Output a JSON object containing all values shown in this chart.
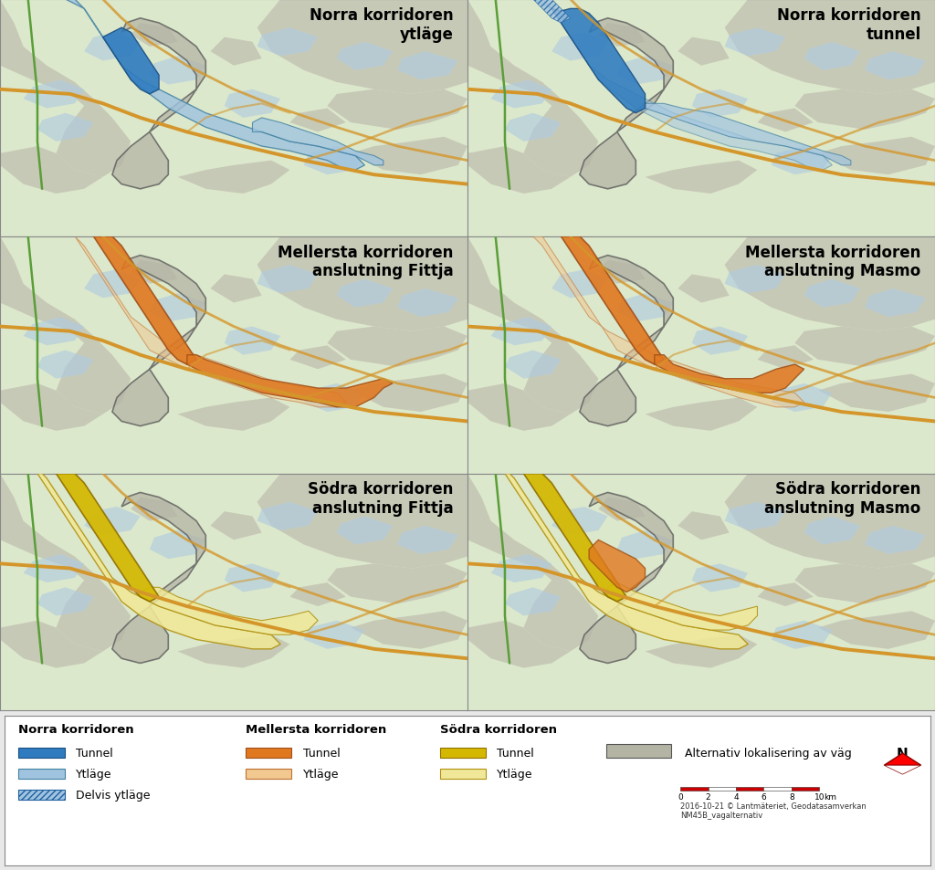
{
  "panel_titles": [
    "Norra korridoren\nytläge",
    "Norra korridoren\ntunnel",
    "Mellersta korridoren\nanslutning Fittja",
    "Mellersta korridoren\nanslutning Masmo",
    "Södra korridoren\nanslutning Fittja",
    "Södra korridoren\nanslutning Masmo"
  ],
  "background_color": "#e8e8e8",
  "title_fontsize": 12,
  "norra_tunnel_color": "#2e7bbf",
  "norra_ytlage_color": "#a0c4e0",
  "mellersta_tunnel_color": "#e07820",
  "mellersta_ytlage_color": "#f0c890",
  "sodra_tunnel_color": "#d4b800",
  "sodra_ytlage_color": "#f0e898",
  "alternativ_color": "#b4b4a4",
  "alternativ_edge": "#555555",
  "road_orange": "#d4962a",
  "road_green": "#5a9e38",
  "water_color": "#b0cce0",
  "terrain_gray": "#c0bfb0",
  "terrain_green": "#d4e0c0",
  "map_bg": "#dce8cc",
  "copyright_text": "2016-10-21 © Lantmäteriet, Geodatasamverkan\nNM45B_vagalternativ"
}
